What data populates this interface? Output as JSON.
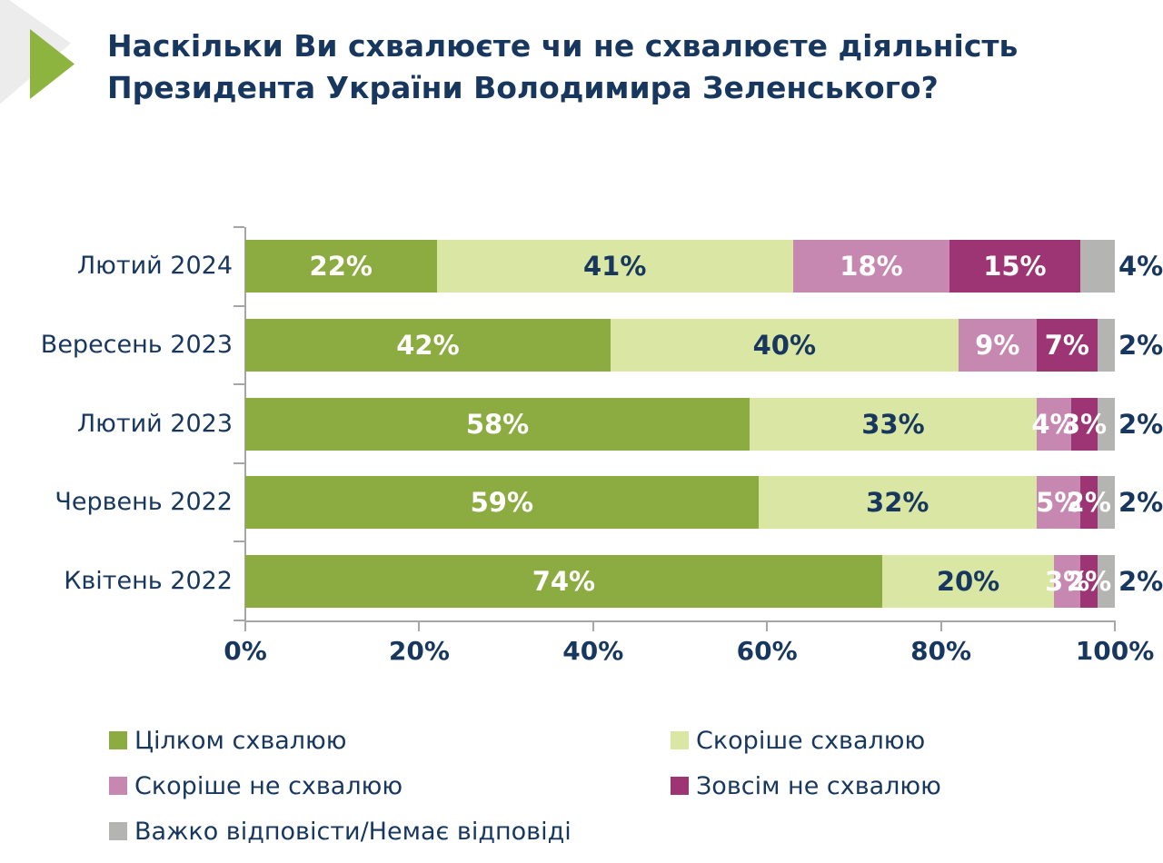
{
  "header": {
    "title_line1": "Наскільки Ви схвалюєте чи не схвалюєте діяльність",
    "title_line2": "Президента України Володимира Зеленського?"
  },
  "theme": {
    "text_navy": "#17375E",
    "accent_green": "#8CB43F",
    "decoration_gray": "#ECECEC",
    "axis_gray": "#A6A6A6",
    "white": "#FFFFFF"
  },
  "chart_data": {
    "type": "bar",
    "orientation": "horizontal",
    "stacked": true,
    "title": "Наскільки Ви схвалюєте чи не схвалюєте діяльність Президента України Володимира Зеленського?",
    "categories": [
      "Лютий 2024",
      "Вересень 2023",
      "Лютий 2023",
      "Червень 2022",
      "Квітень 2022"
    ],
    "series": [
      {
        "name": "Цілком схвалюю",
        "color": "#8CAC42",
        "label_color": "#FFFFFF",
        "values": [
          22,
          42,
          58,
          59,
          74
        ]
      },
      {
        "name": "Скоріше схвалюю",
        "color": "#D9E6A4",
        "label_color": "#17375E",
        "values": [
          41,
          40,
          33,
          32,
          20
        ]
      },
      {
        "name": "Скоріше не схвалюю",
        "color": "#C687B0",
        "label_color": "#FFFFFF",
        "values": [
          18,
          9,
          4,
          5,
          3
        ]
      },
      {
        "name": "Зовсім не схвалюю",
        "color": "#9D3473",
        "label_color": "#FFFFFF",
        "values": [
          15,
          7,
          3,
          2,
          2
        ]
      },
      {
        "name": "Важко відповісти/Немає відповіді",
        "color": "#B4B4B3",
        "label_color": "#17375E",
        "label_outside": true,
        "values": [
          4,
          2,
          2,
          2,
          2
        ]
      }
    ],
    "x_ticks": [
      "0%",
      "20%",
      "40%",
      "60%",
      "80%",
      "100%"
    ],
    "xlim": [
      0,
      100
    ],
    "value_suffix": "%",
    "legend_position": "bottom",
    "grid": false
  }
}
